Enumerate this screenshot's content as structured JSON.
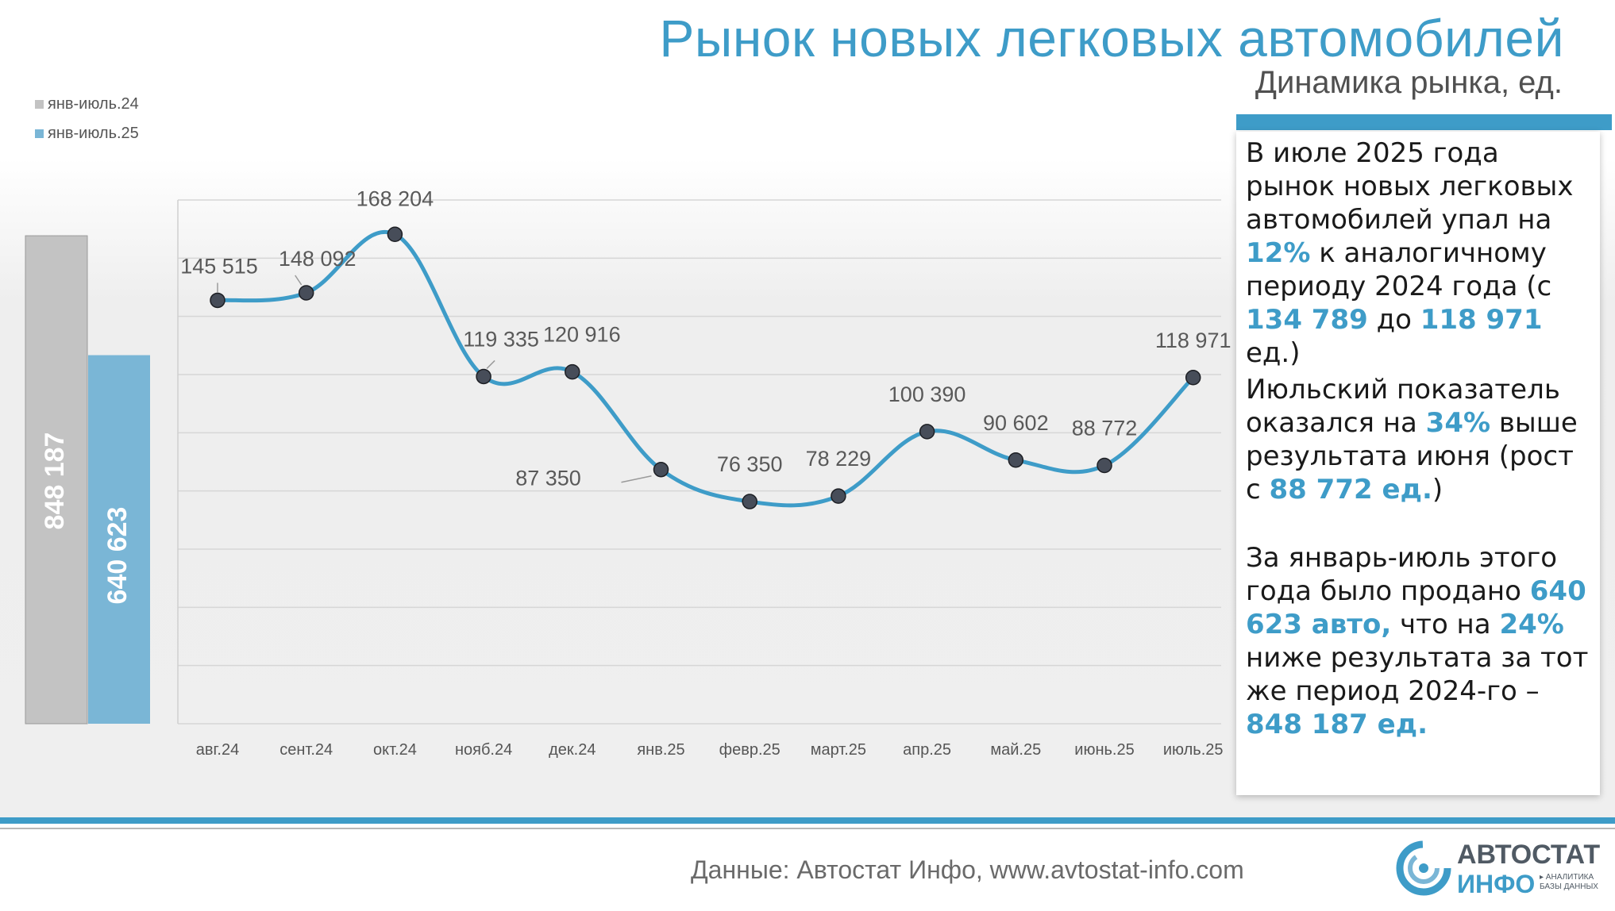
{
  "title": "Рынок новых легковых автомобилей",
  "subtitle": "Динамика рынка, ед.",
  "chart_data": [
    {
      "type": "bar",
      "series": [
        {
          "name": "янв-июль.24",
          "values": [
            848187
          ],
          "label": "848 187",
          "color": "#c3c3c3"
        },
        {
          "name": "янв-июль.25",
          "values": [
            640623
          ],
          "label": "640 623",
          "color": "#7ab6d6"
        }
      ]
    },
    {
      "type": "line",
      "categories": [
        "авг.24",
        "сент.24",
        "окт.24",
        "нояб.24",
        "дек.24",
        "янв.25",
        "февр.25",
        "март.25",
        "апр.25",
        "май.25",
        "июнь.25",
        "июль.25"
      ],
      "values": [
        145515,
        148092,
        168204,
        119335,
        120916,
        87350,
        76350,
        78229,
        100390,
        90602,
        88772,
        118971
      ],
      "labels": [
        "145 515",
        "148 092",
        "168 204",
        "119 335",
        "120 916",
        "87 350",
        "76 350",
        "78 229",
        "100 390",
        "90 602",
        "88 772",
        "118 971"
      ],
      "ylim": [
        0,
        180000
      ],
      "grid": true,
      "line_color": "#3e9cc8",
      "marker_color": "#474d59"
    }
  ],
  "panel": {
    "p1_text1": "В июле 2025 года рынок новых легковых автомобилей упал на ",
    "p1_hl1": "12%",
    "p1_text2": " к аналогичному периоду 2024 года (с ",
    "p1_hl2": "134 789",
    "p1_text3": " до ",
    "p1_hl3": "118 971",
    "p1_text4": " ед.)",
    "p2_text1": "Июльский показатель оказался на ",
    "p2_hl1": "34%",
    "p2_text2": " выше результата июня (рост с ",
    "p2_hl2": "88 772 ед.",
    "p2_text3": ")",
    "p3_text1": "За январь-июль этого года было продано ",
    "p3_hl1": "640 623 авто,",
    "p3_text2": " что на ",
    "p3_hl2": "24%",
    "p3_text3": " ниже результата за тот же период 2024-го – ",
    "p3_hl3": "848 187 ед."
  },
  "footer": {
    "source": "Данные: Автостат Инфо, www.avtostat-info.com"
  },
  "logo": {
    "line1": "АВТОСТАТ",
    "line2": "ИНФО",
    "tagline": "▸ АНАЛИТИКА БАЗЫ ДАННЫХ"
  },
  "colors": {
    "accent": "#3e9cc8",
    "gray_bar": "#c3c3c3",
    "blue_bar": "#7ab6d6"
  }
}
